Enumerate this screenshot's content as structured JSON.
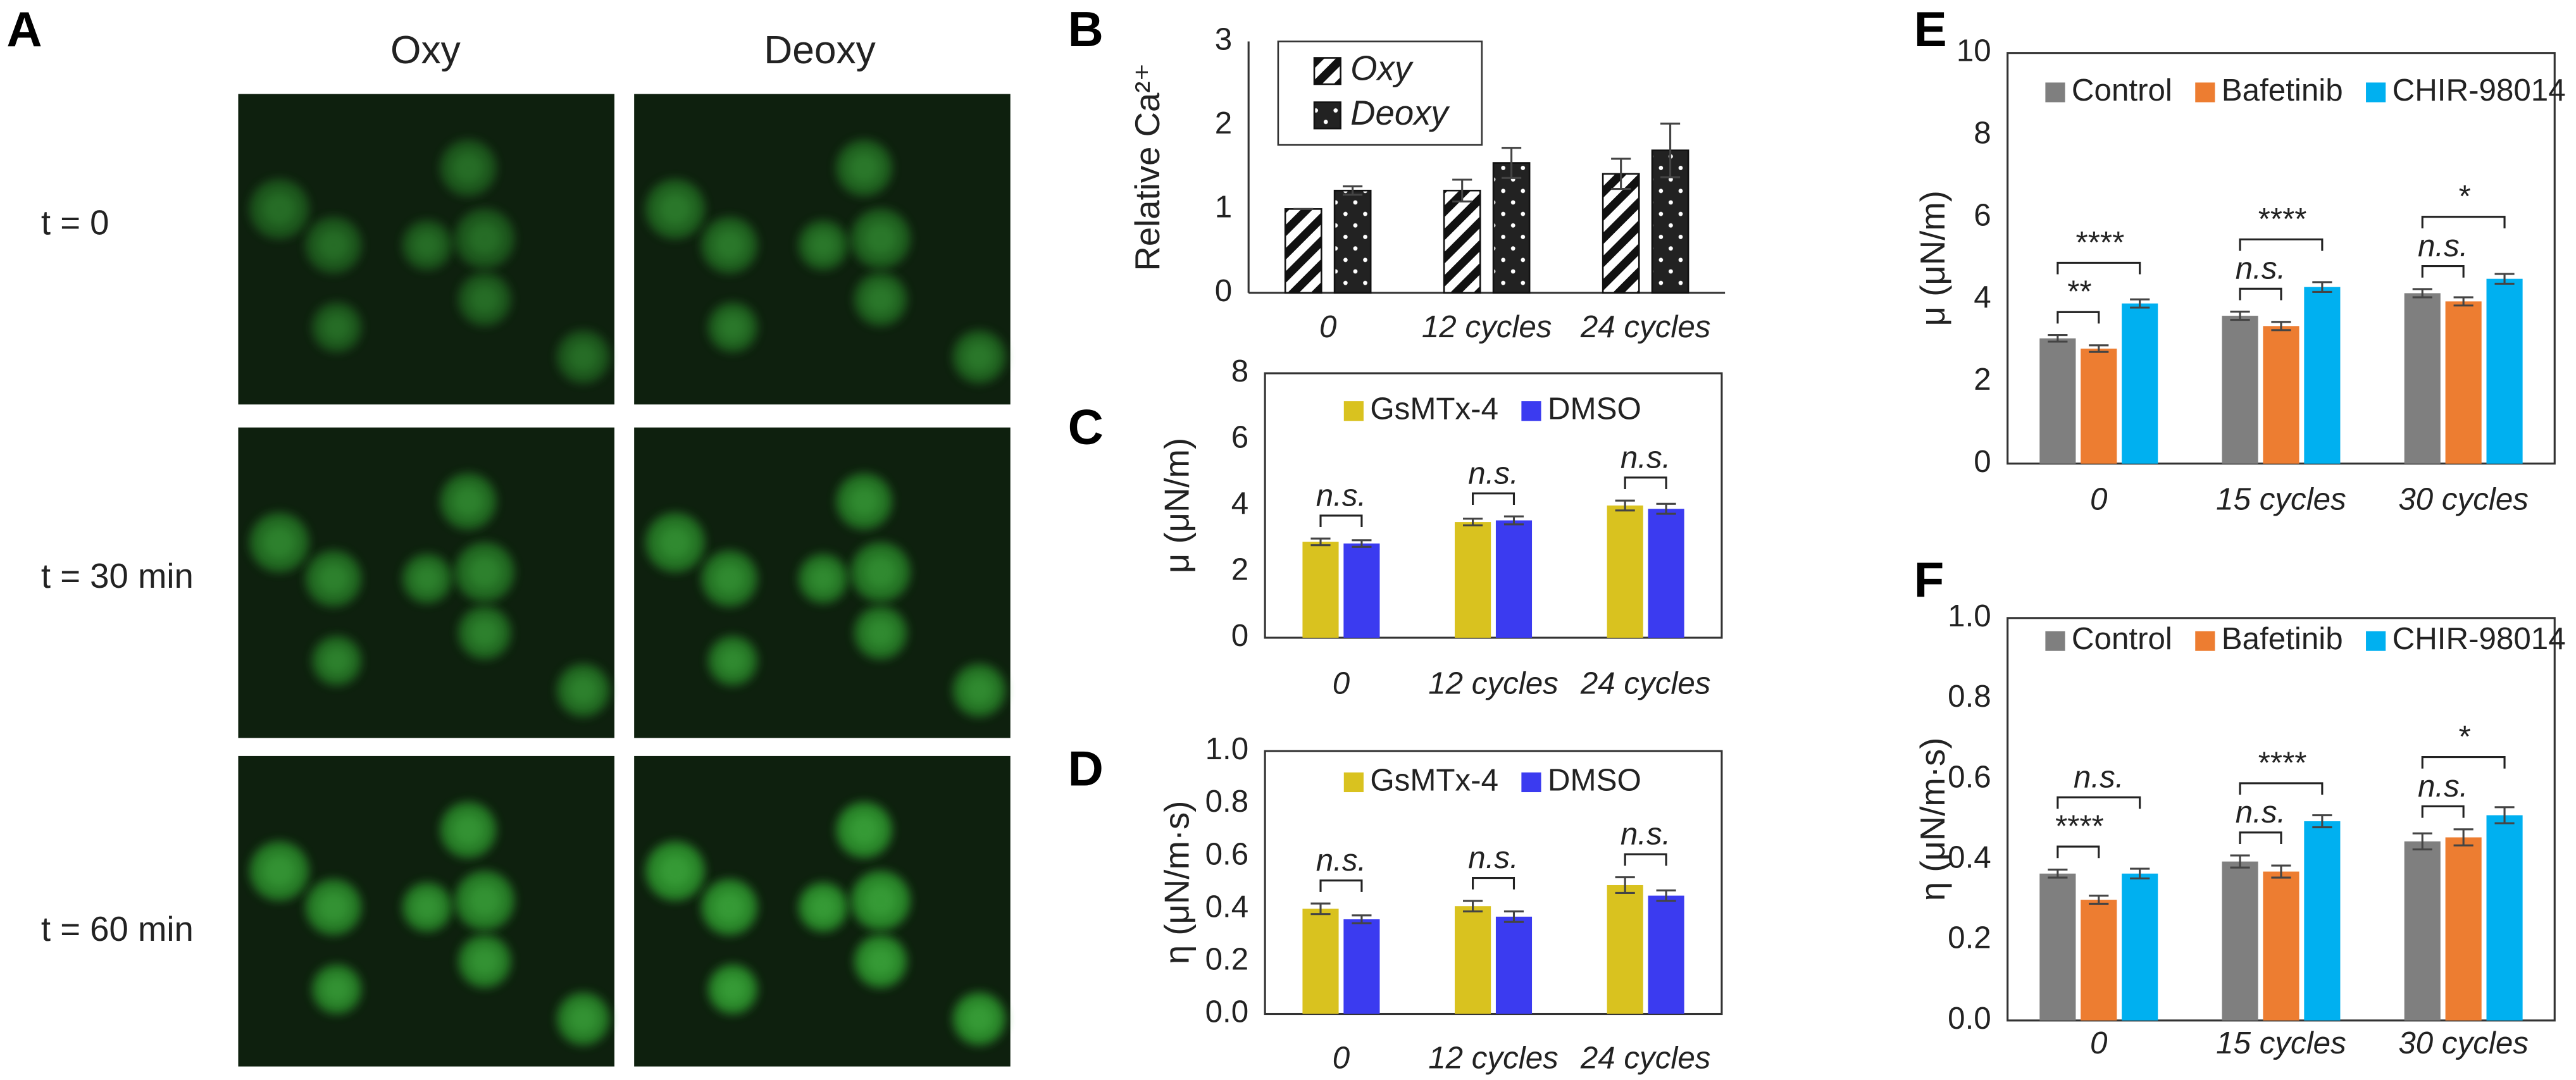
{
  "panel_a": {
    "label": "A",
    "columns": [
      "Oxy",
      "Deoxy"
    ],
    "rows": [
      "t = 0",
      "t = 30 min",
      "t = 60 min"
    ]
  },
  "chart_data": [
    {
      "type": "bar",
      "label": "B",
      "ylabel": "Relative Ca²⁺",
      "categories": [
        "0",
        "12 cycles",
        "24 cycles"
      ],
      "series": [
        {
          "name": "Oxy",
          "color": "#ffffff",
          "pattern": "hatch",
          "values": [
            1.0,
            1.22,
            1.42
          ],
          "errors": [
            0.0,
            0.13,
            0.18
          ]
        },
        {
          "name": "Deoxy",
          "color": "#222222",
          "pattern": "dots",
          "values": [
            1.22,
            1.55,
            1.7
          ],
          "errors": [
            0.05,
            0.18,
            0.32
          ]
        }
      ],
      "ylim": [
        0,
        3
      ],
      "yticks": [
        0,
        1,
        2,
        3
      ],
      "brackets": []
    },
    {
      "type": "bar",
      "label": "C",
      "ylabel": "μ (μN/m)",
      "categories": [
        "0",
        "12 cycles",
        "24 cycles"
      ],
      "series": [
        {
          "name": "GsMTx-4",
          "color": "#d9c21f",
          "values": [
            2.9,
            3.5,
            4.0
          ],
          "errors": [
            0.1,
            0.1,
            0.15
          ]
        },
        {
          "name": "DMSO",
          "color": "#3b3bf0",
          "values": [
            2.85,
            3.55,
            3.9
          ],
          "errors": [
            0.1,
            0.12,
            0.15
          ]
        }
      ],
      "ylim": [
        0,
        8
      ],
      "yticks": [
        0,
        2,
        4,
        6,
        8
      ],
      "brackets": [
        {
          "category": 0,
          "from": 0,
          "to": 1,
          "text": "n.s."
        },
        {
          "category": 1,
          "from": 0,
          "to": 1,
          "text": "n.s."
        },
        {
          "category": 2,
          "from": 0,
          "to": 1,
          "text": "n.s."
        }
      ]
    },
    {
      "type": "bar",
      "label": "D",
      "ylabel": "η (μN/m·s)",
      "categories": [
        "0",
        "12 cycles",
        "24 cycles"
      ],
      "series": [
        {
          "name": "GsMTx-4",
          "color": "#d9c21f",
          "values": [
            0.4,
            0.41,
            0.49
          ],
          "errors": [
            0.02,
            0.02,
            0.03
          ]
        },
        {
          "name": "DMSO",
          "color": "#3b3bf0",
          "values": [
            0.36,
            0.37,
            0.45
          ],
          "errors": [
            0.015,
            0.02,
            0.02
          ]
        }
      ],
      "ylim": [
        0,
        1
      ],
      "yticks": [
        {
          "value": 0,
          "label": "0.0"
        },
        {
          "value": 0.2,
          "label": "0.2"
        },
        {
          "value": 0.4,
          "label": "0.4"
        },
        {
          "value": 0.6,
          "label": "0.6"
        },
        {
          "value": 0.8,
          "label": "0.8"
        },
        {
          "value": 1,
          "label": "1.0"
        }
      ],
      "brackets": [
        {
          "category": 0,
          "from": 0,
          "to": 1,
          "text": "n.s."
        },
        {
          "category": 1,
          "from": 0,
          "to": 1,
          "text": "n.s."
        },
        {
          "category": 2,
          "from": 0,
          "to": 1,
          "text": "n.s."
        }
      ]
    },
    {
      "type": "bar",
      "label": "E",
      "ylabel": "μ (μN/m)",
      "categories": [
        "0",
        "15 cycles",
        "30 cycles"
      ],
      "series": [
        {
          "name": "Control",
          "color": "#7f7f7f",
          "values": [
            3.05,
            3.6,
            4.15
          ],
          "errors": [
            0.08,
            0.1,
            0.1
          ]
        },
        {
          "name": "Bafetinib",
          "color": "#ed7d31",
          "values": [
            2.8,
            3.35,
            3.95
          ],
          "errors": [
            0.08,
            0.1,
            0.1
          ]
        },
        {
          "name": "CHIR-98014",
          "color": "#00b0f0",
          "values": [
            3.9,
            4.3,
            4.5
          ],
          "errors": [
            0.1,
            0.12,
            0.12
          ]
        }
      ],
      "ylim": [
        0,
        10
      ],
      "yticks": [
        0,
        2,
        4,
        6,
        8,
        10
      ],
      "brackets": [
        {
          "category": 0,
          "from": 0,
          "to": 1,
          "text": "**"
        },
        {
          "category": 0,
          "from": 0,
          "to": 2,
          "text": "****"
        },
        {
          "category": 1,
          "from": 0,
          "to": 1,
          "text": "n.s."
        },
        {
          "category": 1,
          "from": 0,
          "to": 2,
          "text": "****"
        },
        {
          "category": 2,
          "from": 0,
          "to": 1,
          "text": "n.s."
        },
        {
          "category": 2,
          "from": 0,
          "to": 2,
          "text": "*"
        }
      ]
    },
    {
      "type": "bar",
      "label": "F",
      "ylabel": "η (μN/m·s)",
      "categories": [
        "0",
        "15 cycles",
        "30 cycles"
      ],
      "series": [
        {
          "name": "Control",
          "color": "#7f7f7f",
          "values": [
            0.365,
            0.395,
            0.445
          ],
          "errors": [
            0.01,
            0.015,
            0.02
          ]
        },
        {
          "name": "Bafetinib",
          "color": "#ed7d31",
          "values": [
            0.3,
            0.37,
            0.455
          ],
          "errors": [
            0.01,
            0.015,
            0.02
          ]
        },
        {
          "name": "CHIR-98014",
          "color": "#00b0f0",
          "values": [
            0.365,
            0.495,
            0.51
          ],
          "errors": [
            0.012,
            0.015,
            0.02
          ]
        }
      ],
      "ylim": [
        0,
        1
      ],
      "yticks": [
        {
          "value": 0,
          "label": "0.0"
        },
        {
          "value": 0.2,
          "label": "0.2"
        },
        {
          "value": 0.4,
          "label": "0.4"
        },
        {
          "value": 0.6,
          "label": "0.6"
        },
        {
          "value": 0.8,
          "label": "0.8"
        },
        {
          "value": 1,
          "label": "1.0"
        }
      ],
      "brackets": [
        {
          "category": 0,
          "from": 0,
          "to": 1,
          "text": "****"
        },
        {
          "category": 0,
          "from": 0,
          "to": 2,
          "text": "n.s."
        },
        {
          "category": 1,
          "from": 0,
          "to": 1,
          "text": "n.s."
        },
        {
          "category": 1,
          "from": 0,
          "to": 2,
          "text": "****"
        },
        {
          "category": 2,
          "from": 0,
          "to": 1,
          "text": "n.s."
        },
        {
          "category": 2,
          "from": 0,
          "to": 2,
          "text": "*"
        }
      ]
    }
  ]
}
